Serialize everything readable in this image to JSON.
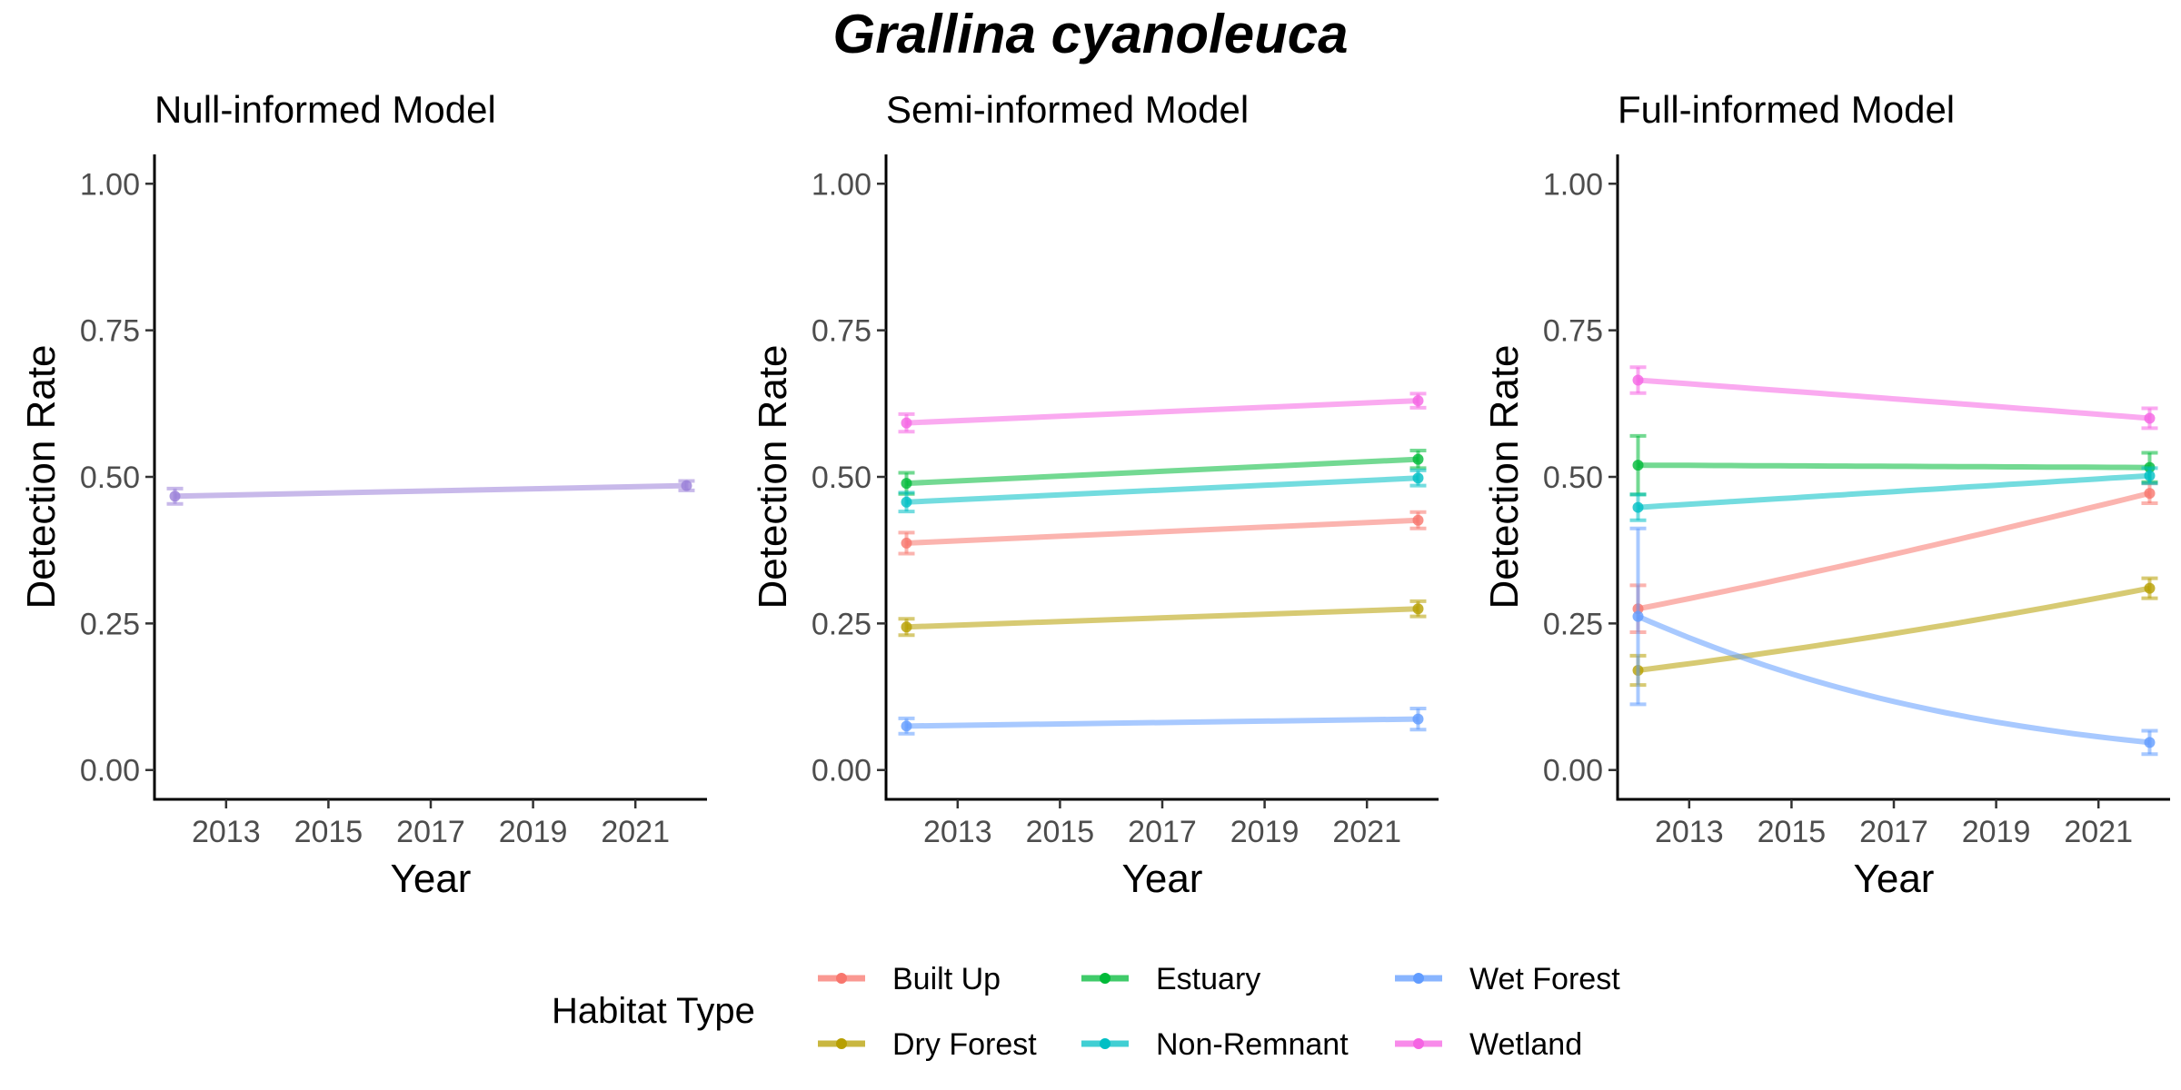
{
  "title": "Grallina cyanoleuca",
  "legend": {
    "title": "Habitat Type",
    "items": [
      {
        "label": "Built Up",
        "color": "#F8766D"
      },
      {
        "label": "Dry Forest",
        "color": "#B79F00"
      },
      {
        "label": "Estuary",
        "color": "#00BA38"
      },
      {
        "label": "Non-Remnant",
        "color": "#00BFC4"
      },
      {
        "label": "Wet Forest",
        "color": "#619CFF"
      },
      {
        "label": "Wetland",
        "color": "#F564E3"
      }
    ]
  },
  "chart_data": [
    {
      "type": "line",
      "title": "Null-informed Model",
      "xlabel": "Year",
      "ylabel": "Detection Rate",
      "xlim": [
        2011.6,
        2022.4
      ],
      "ylim": [
        -0.05,
        1.05
      ],
      "xticks": [
        "2013",
        "2015",
        "2017",
        "2019",
        "2021"
      ],
      "yticks": [
        "0.00",
        "0.25",
        "0.50",
        "0.75",
        "1.00"
      ],
      "series": [
        {
          "color": "#9A80D8",
          "x": [
            2012,
            2022
          ],
          "y": [
            0.467,
            0.485
          ],
          "error": [
            0.013,
            0.008
          ],
          "line_shape": "linear"
        }
      ]
    },
    {
      "type": "line",
      "title": "Semi-informed Model",
      "xlabel": "Year",
      "ylabel": "Detection Rate",
      "xlim": [
        2011.6,
        2022.4
      ],
      "ylim": [
        -0.05,
        1.05
      ],
      "xticks": [
        "2013",
        "2015",
        "2017",
        "2019",
        "2021"
      ],
      "yticks": [
        "0.00",
        "0.25",
        "0.50",
        "0.75",
        "1.00"
      ],
      "series": [
        {
          "name": "Built Up",
          "color": "#F8766D",
          "x": [
            2012,
            2022
          ],
          "y": [
            0.387,
            0.426
          ],
          "error": [
            0.018,
            0.014
          ],
          "line_shape": "linear"
        },
        {
          "name": "Dry Forest",
          "color": "#B79F00",
          "x": [
            2012,
            2022
          ],
          "y": [
            0.244,
            0.275
          ],
          "error": [
            0.014,
            0.013
          ],
          "line_shape": "linear"
        },
        {
          "name": "Estuary",
          "color": "#00BA38",
          "x": [
            2012,
            2022
          ],
          "y": [
            0.489,
            0.53
          ],
          "error": [
            0.018,
            0.015
          ],
          "line_shape": "linear"
        },
        {
          "name": "Non-Remnant",
          "color": "#00BFC4",
          "x": [
            2012,
            2022
          ],
          "y": [
            0.457,
            0.498
          ],
          "error": [
            0.016,
            0.013
          ],
          "line_shape": "linear"
        },
        {
          "name": "Wet Forest",
          "color": "#619CFF",
          "x": [
            2012,
            2022
          ],
          "y": [
            0.075,
            0.087
          ],
          "error": [
            0.013,
            0.018
          ],
          "line_shape": "linear"
        },
        {
          "name": "Wetland",
          "color": "#F564E3",
          "x": [
            2012,
            2022
          ],
          "y": [
            0.592,
            0.63
          ],
          "error": [
            0.015,
            0.012
          ],
          "line_shape": "linear"
        }
      ]
    },
    {
      "type": "line",
      "title": "Full-informed Model",
      "xlabel": "Year",
      "ylabel": "Detection Rate",
      "xlim": [
        2011.6,
        2022.4
      ],
      "ylim": [
        -0.05,
        1.05
      ],
      "xticks": [
        "2013",
        "2015",
        "2017",
        "2019",
        "2021"
      ],
      "yticks": [
        "0.00",
        "0.25",
        "0.50",
        "0.75",
        "1.00"
      ],
      "series": [
        {
          "name": "Built Up",
          "color": "#F8766D",
          "x": [
            2012,
            2022
          ],
          "y": [
            0.275,
            0.472
          ],
          "error": [
            0.04,
            0.017
          ],
          "line_shape": "logistic"
        },
        {
          "name": "Dry Forest",
          "color": "#B79F00",
          "x": [
            2012,
            2022
          ],
          "y": [
            0.17,
            0.31
          ],
          "error": [
            0.025,
            0.017
          ],
          "line_shape": "logistic"
        },
        {
          "name": "Estuary",
          "color": "#00BA38",
          "x": [
            2012,
            2022
          ],
          "y": [
            0.52,
            0.516
          ],
          "error": [
            0.05,
            0.025
          ],
          "line_shape": "logistic"
        },
        {
          "name": "Non-Remnant",
          "color": "#00BFC4",
          "x": [
            2012,
            2022
          ],
          "y": [
            0.448,
            0.502
          ],
          "error": [
            0.022,
            0.013
          ],
          "line_shape": "logistic"
        },
        {
          "name": "Wet Forest",
          "color": "#619CFF",
          "x": [
            2012,
            2022
          ],
          "y": [
            0.262,
            0.047
          ],
          "error": [
            0.15,
            0.02
          ],
          "line_shape": "logistic"
        },
        {
          "name": "Wetland",
          "color": "#F564E3",
          "x": [
            2012,
            2022
          ],
          "y": [
            0.665,
            0.6
          ],
          "error": [
            0.022,
            0.017
          ],
          "line_shape": "logistic"
        }
      ]
    }
  ]
}
